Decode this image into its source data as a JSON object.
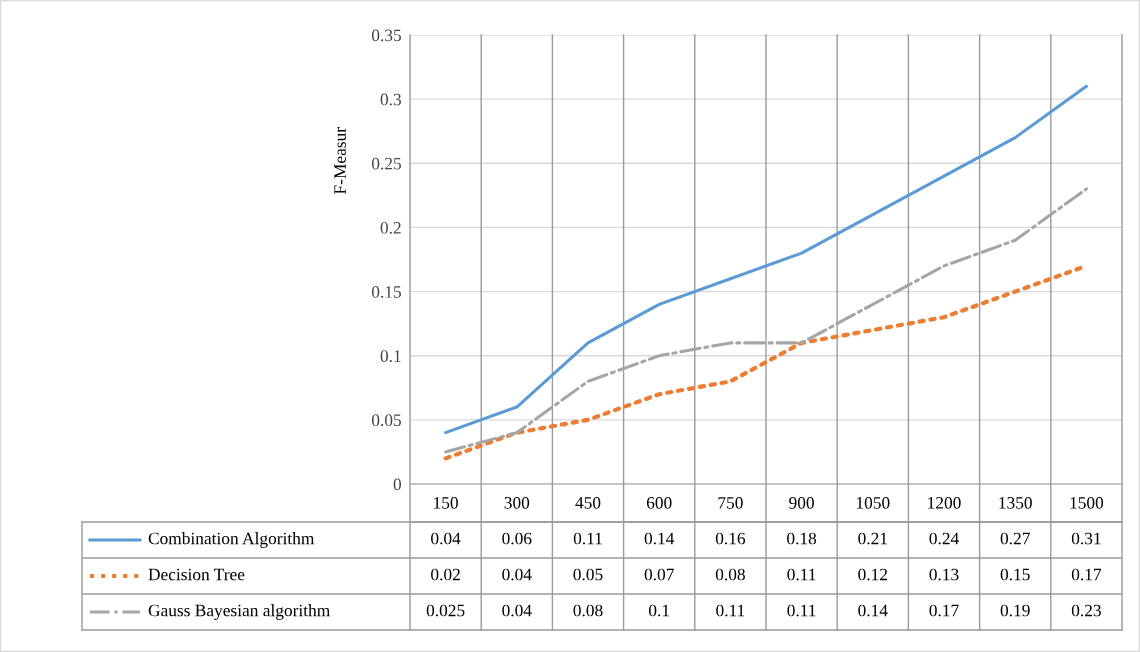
{
  "chart_data": {
    "type": "line",
    "ylabel": "F-Measur",
    "categories": [
      "150",
      "300",
      "450",
      "600",
      "750",
      "900",
      "1050",
      "1200",
      "1350",
      "1500"
    ],
    "series": [
      {
        "name": "Combination Algorithm",
        "color": "#5b9bd5",
        "line_style": "solid",
        "values": [
          0.04,
          0.06,
          0.11,
          0.14,
          0.16,
          0.18,
          0.21,
          0.24,
          0.27,
          0.31
        ]
      },
      {
        "name": "Decision Tree",
        "color": "#ed7d31",
        "line_style": "dotted",
        "values": [
          0.02,
          0.04,
          0.05,
          0.07,
          0.08,
          0.11,
          0.12,
          0.13,
          0.15,
          0.17
        ]
      },
      {
        "name": "Gauss Bayesian algorithm",
        "color": "#a5a5a5",
        "line_style": "dashdot",
        "values": [
          0.025,
          0.04,
          0.08,
          0.1,
          0.11,
          0.11,
          0.14,
          0.17,
          0.19,
          0.23
        ]
      }
    ],
    "ylim": [
      0,
      0.35
    ],
    "yticks": [
      0,
      0.05,
      0.1,
      0.15,
      0.2,
      0.25,
      0.3,
      0.35
    ],
    "grid": true,
    "legend": "bottom",
    "data_labels": true,
    "marker": "none"
  }
}
